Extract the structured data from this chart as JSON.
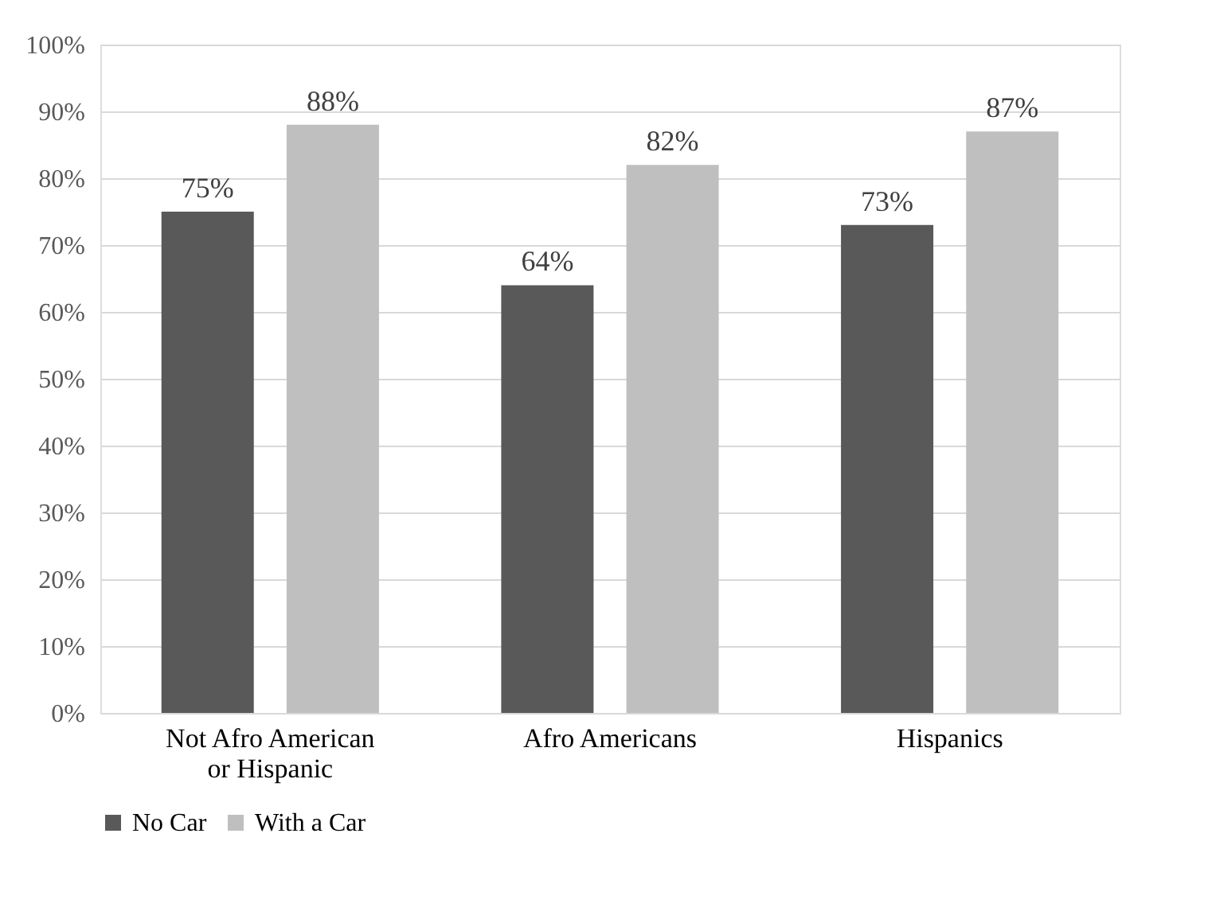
{
  "chart_data": {
    "type": "bar",
    "categories": [
      "Not Afro American or Hispanic",
      "Afro Americans",
      "Hispanics"
    ],
    "series": [
      {
        "name": "No Car",
        "color": "#595959",
        "values": [
          75,
          64,
          73
        ],
        "value_labels": [
          "75%",
          "64%",
          "73%"
        ]
      },
      {
        "name": "With a Car",
        "color": "#bfbfbf",
        "values": [
          88,
          82,
          87
        ],
        "value_labels": [
          "88%",
          "82%",
          "87%"
        ]
      }
    ],
    "ylim": [
      0,
      100
    ],
    "yticks": [
      {
        "value": 0,
        "label": "0%"
      },
      {
        "value": 10,
        "label": "10%"
      },
      {
        "value": 20,
        "label": "20%"
      },
      {
        "value": 30,
        "label": "30%"
      },
      {
        "value": 40,
        "label": "40%"
      },
      {
        "value": 50,
        "label": "50%"
      },
      {
        "value": 60,
        "label": "60%"
      },
      {
        "value": 70,
        "label": "70%"
      },
      {
        "value": 80,
        "label": "80%"
      },
      {
        "value": 90,
        "label": "90%"
      },
      {
        "value": 100,
        "label": "100%"
      }
    ],
    "grid": "y",
    "legend": "bottom"
  }
}
